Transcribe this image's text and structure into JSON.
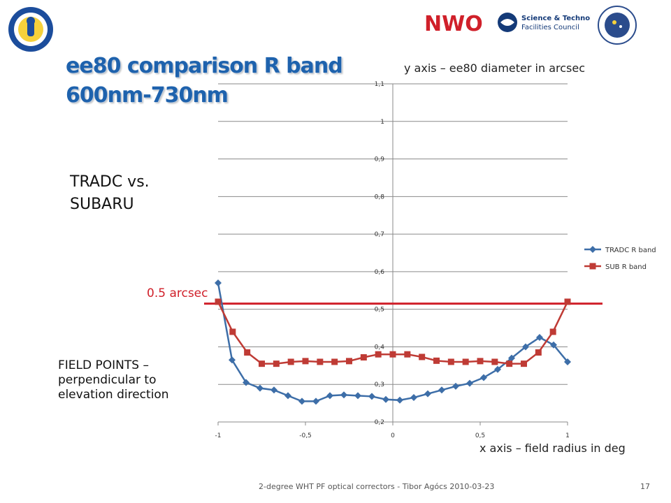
{
  "slide": {
    "title": "ee80 comparison R band\n600nm-730nm",
    "ylabel_note": "y axis – ee80 diameter in arcsec",
    "xlabel_note": "x axis – field radius in deg",
    "subtitle": "TRADC vs.\nSUBARU",
    "reference_label": "0.5 arcsec",
    "field_note": "FIELD POINTS –\nperpendicular to\nelevation direction",
    "footer": "2-degree WHT PF optical correctors - Tibor Agócs      2010-03-23",
    "page_number": "17",
    "logos": {
      "nwo": "NWO",
      "stfc": "Science & Technology\nFacilities Council",
      "ing": "ISAAC NEWTON GROUP LA PALMA"
    }
  },
  "colors": {
    "tradc": "#3d6ea8",
    "sub": "#bf3b35",
    "reference": "#d0202a",
    "title": "#1e62ad"
  },
  "chart_data": {
    "type": "line",
    "xlim": [
      -1,
      1
    ],
    "ylim": [
      0.2,
      1.1
    ],
    "xticks": [
      "-1",
      "-0,5",
      "0",
      "0,5",
      "1"
    ],
    "xtick_values": [
      -1,
      -0.5,
      0,
      0.5,
      1
    ],
    "yticks": [
      "0,2",
      "0,3",
      "0,4",
      "0,5",
      "0,6",
      "0,7",
      "0,8",
      "0,9",
      "1",
      "1,1"
    ],
    "ytick_values": [
      0.2,
      0.3,
      0.4,
      0.5,
      0.6,
      0.7,
      0.8,
      0.9,
      1.0,
      1.1
    ],
    "grid": "horizontal",
    "legend": "right",
    "reference_line": 0.5,
    "series": [
      {
        "name": "TRADC R band",
        "marker": "diamond",
        "x": [
          -1,
          -0.9333,
          -0.8667,
          -0.8,
          -0.7333,
          -0.6667,
          -0.6,
          -0.5333,
          -0.4667,
          -0.4,
          -0.3333,
          -0.2667,
          -0.2,
          -0.1333,
          -0.0667,
          0,
          0.0667,
          0.1333,
          0.2,
          0.2667,
          0.3333,
          0.4,
          0.4667,
          0.5333,
          0.6,
          0.6667,
          0.7333,
          0.8
        ],
        "y": [
          0.57,
          0.365,
          0.305,
          0.29,
          0.285,
          0.27,
          0.255,
          0.255,
          0.27,
          0.272,
          0.27,
          0.268,
          0.26,
          0.258,
          0.265,
          0.275,
          0.285,
          0.295,
          0.303,
          0.318,
          0.34,
          0.37,
          0.4,
          0.425,
          0.405,
          0.36,
          null,
          null
        ]
      },
      {
        "name": "SUB R band",
        "marker": "square",
        "x": [
          -1,
          -0.9333,
          -0.8667,
          -0.8,
          -0.7333,
          -0.6667,
          -0.6,
          -0.5333,
          -0.4667,
          -0.4,
          -0.3333,
          -0.2667,
          -0.2,
          -0.1333,
          -0.0667,
          0,
          0.0667,
          0.1333,
          0.2,
          0.2667,
          0.3333,
          0.4,
          0.4667,
          0.5333,
          0.6,
          0.6667,
          0.7333,
          0.8
        ],
        "y": [
          0.52,
          0.44,
          0.385,
          0.355,
          0.355,
          0.36,
          0.362,
          0.36,
          0.36,
          0.362,
          0.372,
          0.38,
          0.38,
          0.38,
          0.373,
          0.363,
          0.36,
          0.36,
          0.362,
          0.36,
          0.355,
          0.355,
          0.385,
          0.44,
          0.52,
          null,
          null,
          null
        ]
      }
    ]
  }
}
